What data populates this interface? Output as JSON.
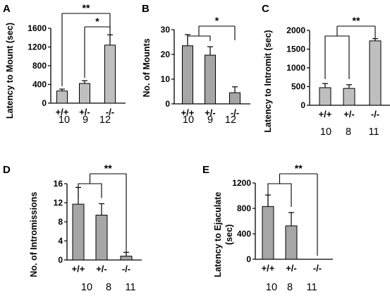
{
  "chart_data": [
    {
      "type": "bar",
      "panel_label": "A",
      "ylabel": "Latency to Mount (sec)",
      "ylim": [
        0,
        1600
      ],
      "yticks": [
        "0",
        "400",
        "800",
        "1200",
        "1600"
      ],
      "categories": [
        "+/+",
        "+/-",
        "-/-"
      ],
      "values": [
        260,
        420,
        1240
      ],
      "errors": [
        40,
        60,
        220
      ],
      "n": [
        "10",
        "9",
        "12"
      ],
      "significance": [
        {
          "from": 0,
          "to": 2,
          "label": "**"
        },
        {
          "from": 1,
          "to": 2,
          "label": "*"
        }
      ],
      "bar_color": "#bfbfbf"
    },
    {
      "type": "bar",
      "panel_label": "B",
      "ylabel": "No. of Mounts",
      "ylim": [
        0,
        30
      ],
      "yticks": [
        "0",
        "10",
        "20",
        "30"
      ],
      "categories": [
        "+/+",
        "+/-",
        "-/-"
      ],
      "values": [
        23.5,
        19.7,
        4.5
      ],
      "errors": [
        4.5,
        3.4,
        2.4
      ],
      "n": [
        "10",
        "9",
        "12"
      ],
      "significance": [
        {
          "from": [
            0,
            1
          ],
          "to": 2,
          "label": "*"
        }
      ],
      "bar_color": "#a6a6a6"
    },
    {
      "type": "bar",
      "panel_label": "C",
      "ylabel": "Latency to Intromit (sec)",
      "ylim": [
        0,
        2000
      ],
      "yticks": [
        "0",
        "500",
        "1000",
        "1500",
        "2000"
      ],
      "categories": [
        "+/+",
        "+/-",
        "-/-"
      ],
      "values": [
        470,
        450,
        1720
      ],
      "errors": [
        110,
        100,
        60
      ],
      "n": [
        "10",
        "8",
        "11"
      ],
      "significance": [
        {
          "from": [
            0,
            1
          ],
          "to": 2,
          "label": "**"
        }
      ],
      "bar_color": "#bfbfbf"
    },
    {
      "type": "bar",
      "panel_label": "D",
      "ylabel": "No. of Intromissions",
      "ylim": [
        0,
        16
      ],
      "yticks": [
        "0",
        "4",
        "8",
        "12",
        "16"
      ],
      "categories": [
        "+/+",
        "+/-",
        "-/-"
      ],
      "values": [
        11.7,
        9.4,
        0.8
      ],
      "errors": [
        3.5,
        2.4,
        0.8
      ],
      "n": [
        "10",
        "8",
        "11"
      ],
      "significance": [
        {
          "from": [
            0,
            1
          ],
          "to": 2,
          "label": "**"
        }
      ],
      "bar_color": "#a6a6a6"
    },
    {
      "type": "bar",
      "panel_label": "E",
      "ylabel": "Latency to Ejaculate (sec)",
      "ylabel_lines": [
        "Latency to Ejaculate",
        "(sec)"
      ],
      "ylim": [
        0,
        1200
      ],
      "yticks": [
        "0",
        "400",
        "800",
        "1200"
      ],
      "categories": [
        "+/+",
        "+/-",
        "-/-"
      ],
      "values": [
        830,
        525,
        0
      ],
      "errors": [
        180,
        210,
        0
      ],
      "n": [
        "10",
        "8",
        "11"
      ],
      "significance": [
        {
          "from": [
            0,
            1
          ],
          "to": 2,
          "label": "**"
        }
      ],
      "bar_color": "#a6a6a6"
    }
  ]
}
